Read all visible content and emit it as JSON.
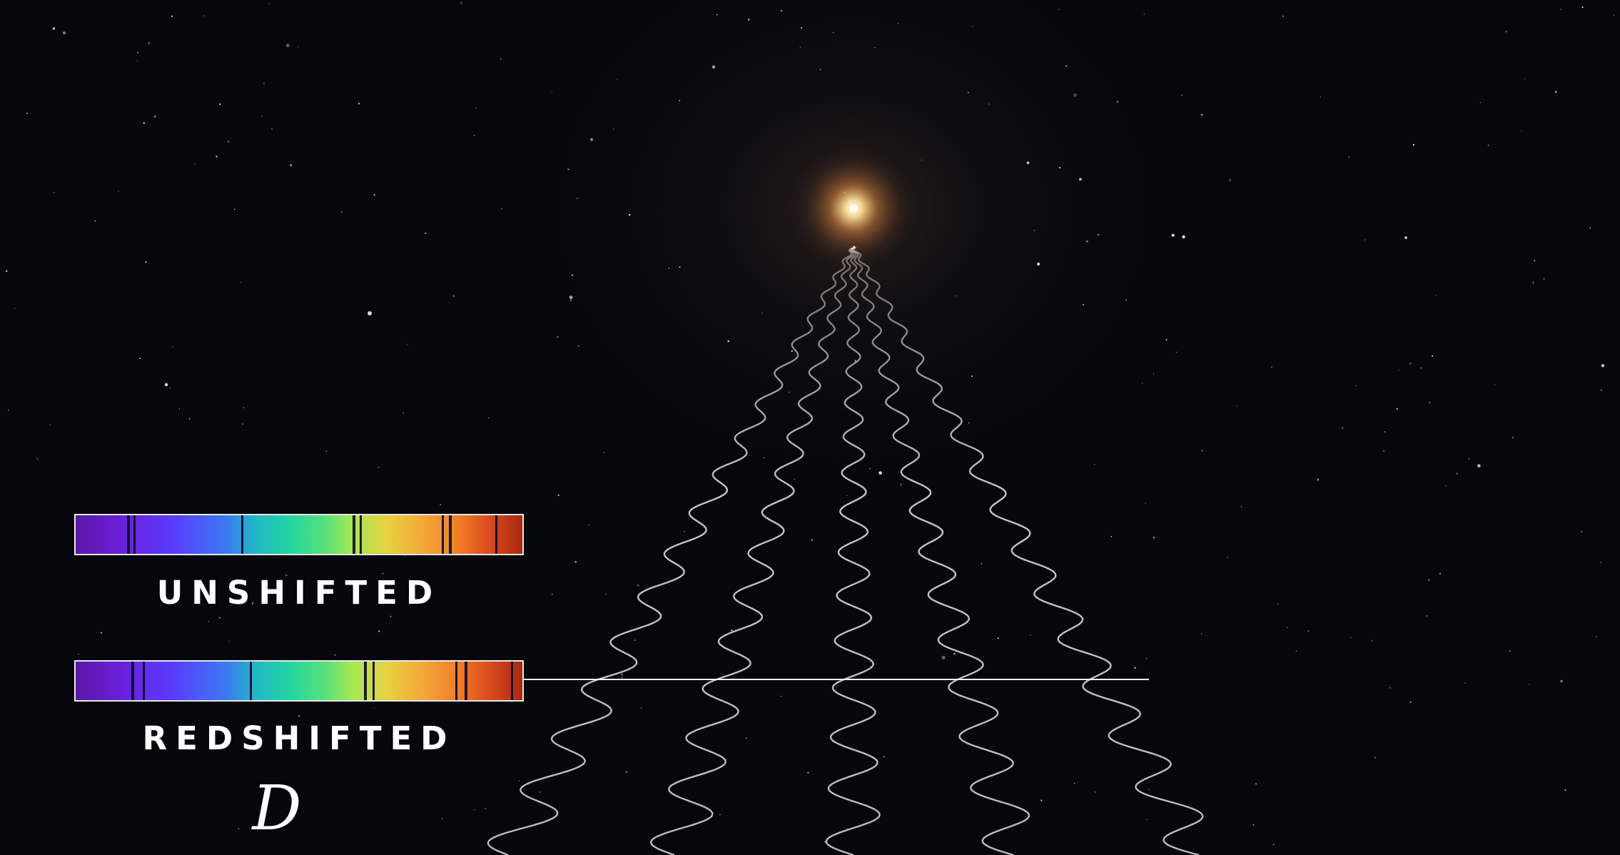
{
  "spectra": {
    "unshifted": {
      "label": "UNSHIFTED",
      "absorption_lines": [
        0.115,
        0.13,
        0.37,
        0.62,
        0.635,
        0.82,
        0.835,
        0.94
      ]
    },
    "redshifted": {
      "label": "REDSHIFTED",
      "absorption_lines": [
        0.125,
        0.15,
        0.39,
        0.645,
        0.665,
        0.85,
        0.87,
        0.975
      ]
    }
  },
  "distance_symbol": "D",
  "colors": {
    "background": "#05070d",
    "star_core": "#fff6d8",
    "star_glow": "#ffb060",
    "wave_stroke": "#d8d8d8",
    "label_text": "#ffffff"
  }
}
